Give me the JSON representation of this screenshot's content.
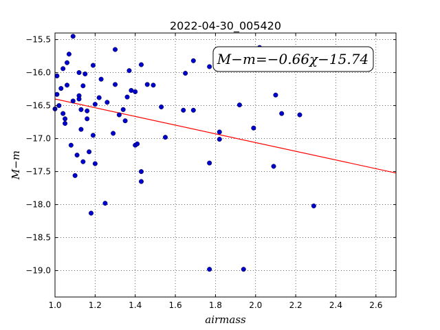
{
  "chart_data": {
    "type": "scatter",
    "title": "2022-04-30_005420",
    "xlabel": "airmass",
    "ylabel": "M−m",
    "xlim": [
      1.0,
      2.7
    ],
    "ylim": [
      -19.4,
      -15.4
    ],
    "xticks": [
      "1.0",
      "1.2",
      "1.4",
      "1.6",
      "1.8",
      "2.0",
      "2.2",
      "2.4",
      "2.6"
    ],
    "yticks": [
      "−15.5",
      "−16.0",
      "−16.5",
      "−17.0",
      "−17.5",
      "−18.0",
      "−18.5",
      "−19.0"
    ],
    "grid": true,
    "annotation": "M−m=−0.66χ−15.74",
    "fit": {
      "slope": -0.66,
      "intercept": -15.74,
      "color": "#ff0000"
    },
    "point_color": "#0000cc",
    "points": [
      [
        1.0,
        -16.55
      ],
      [
        1.01,
        -16.05
      ],
      [
        1.01,
        -16.33
      ],
      [
        1.02,
        -16.5
      ],
      [
        1.03,
        -16.24
      ],
      [
        1.04,
        -16.62
      ],
      [
        1.04,
        -15.94
      ],
      [
        1.05,
        -16.7
      ],
      [
        1.05,
        -16.77
      ],
      [
        1.06,
        -15.85
      ],
      [
        1.06,
        -16.19
      ],
      [
        1.07,
        -15.72
      ],
      [
        1.08,
        -17.1
      ],
      [
        1.09,
        -16.43
      ],
      [
        1.09,
        -15.45
      ],
      [
        1.1,
        -17.56
      ],
      [
        1.11,
        -17.25
      ],
      [
        1.12,
        -16.0
      ],
      [
        1.12,
        -16.35
      ],
      [
        1.12,
        -16.4
      ],
      [
        1.13,
        -16.86
      ],
      [
        1.13,
        -16.56
      ],
      [
        1.14,
        -17.35
      ],
      [
        1.14,
        -16.2
      ],
      [
        1.15,
        -16.02
      ],
      [
        1.16,
        -16.58
      ],
      [
        1.16,
        -16.7
      ],
      [
        1.17,
        -17.2
      ],
      [
        1.18,
        -18.13
      ],
      [
        1.19,
        -15.89
      ],
      [
        1.19,
        -16.95
      ],
      [
        1.2,
        -17.38
      ],
      [
        1.2,
        -16.48
      ],
      [
        1.22,
        -16.38
      ],
      [
        1.23,
        -16.1
      ],
      [
        1.25,
        -17.98
      ],
      [
        1.26,
        -16.45
      ],
      [
        1.29,
        -16.92
      ],
      [
        1.3,
        -15.65
      ],
      [
        1.3,
        -16.18
      ],
      [
        1.32,
        -16.64
      ],
      [
        1.34,
        -16.56
      ],
      [
        1.35,
        -16.73
      ],
      [
        1.36,
        -16.37
      ],
      [
        1.37,
        -15.97
      ],
      [
        1.38,
        -16.27
      ],
      [
        1.4,
        -16.29
      ],
      [
        1.4,
        -17.1
      ],
      [
        1.41,
        -17.08
      ],
      [
        1.43,
        -15.88
      ],
      [
        1.43,
        -17.5
      ],
      [
        1.43,
        -17.65
      ],
      [
        1.46,
        -16.18
      ],
      [
        1.49,
        -16.19
      ],
      [
        1.53,
        -16.52
      ],
      [
        1.55,
        -16.98
      ],
      [
        1.64,
        -16.57
      ],
      [
        1.65,
        -16.01
      ],
      [
        1.69,
        -16.57
      ],
      [
        1.69,
        -15.82
      ],
      [
        1.77,
        -15.91
      ],
      [
        1.77,
        -17.37
      ],
      [
        1.77,
        -18.98
      ],
      [
        1.82,
        -17.01
      ],
      [
        1.82,
        -16.9
      ],
      [
        1.92,
        -16.49
      ],
      [
        1.94,
        -18.98
      ],
      [
        1.99,
        -16.84
      ],
      [
        2.02,
        -15.62
      ],
      [
        2.09,
        -17.42
      ],
      [
        2.1,
        -16.34
      ],
      [
        2.13,
        -16.62
      ],
      [
        2.22,
        -16.64
      ],
      [
        2.29,
        -18.02
      ]
    ]
  }
}
